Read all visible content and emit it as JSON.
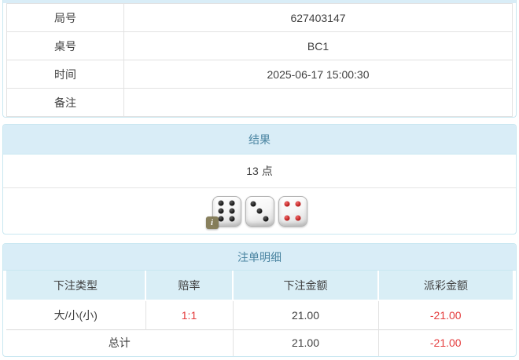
{
  "colors": {
    "panel_heading_bg": "#d9edf7",
    "panel_border": "#c9e7f1",
    "heading_text": "#4b85a2",
    "table_header_bg": "#d9eef6",
    "negative": "#e43b3c",
    "text": "#3f3f3f"
  },
  "game_info": {
    "rows": [
      {
        "label": "局号",
        "value": "627403147"
      },
      {
        "label": "桌号",
        "value": "BC1"
      },
      {
        "label": "时间",
        "value": "2025-06-17 15:00:30"
      },
      {
        "label": "备注",
        "value": ""
      }
    ]
  },
  "result": {
    "title": "结果",
    "points": "13 点",
    "dice": [
      {
        "value": 6,
        "color": "black"
      },
      {
        "value": 3,
        "color": "black"
      },
      {
        "value": 4,
        "color": "red"
      }
    ],
    "info_badge": "i"
  },
  "bet_details": {
    "title": "注单明细",
    "columns": [
      "下注类型",
      "赔率",
      "下注金额",
      "派彩金额"
    ],
    "rows": [
      {
        "type": "大/小(小)",
        "odds": "1:1",
        "bet": "21.00",
        "payout": "-21.00"
      }
    ],
    "total": {
      "label": "总计",
      "bet": "21.00",
      "payout": "-21.00"
    }
  }
}
